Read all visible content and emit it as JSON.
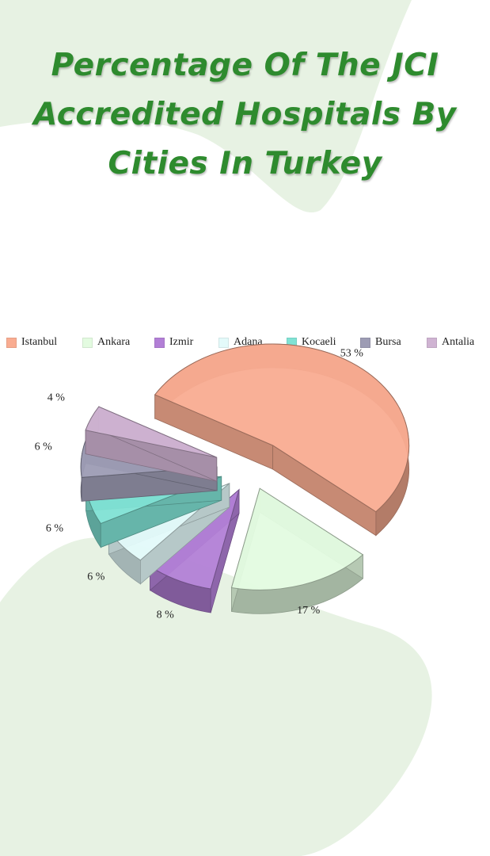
{
  "title": "Percentage Of The JCI Accredited Hospitals By Cities In Turkey",
  "colors": {
    "title": "#2e8b2e",
    "background_shape": "#e7f2e3"
  },
  "chart_data": {
    "type": "pie",
    "subtype": "3d-exploded",
    "legend_position": "top",
    "categories": [
      "Istanbul",
      "Ankara",
      "Izmir",
      "Adana",
      "Kocaeli",
      "Bursa",
      "Antalia"
    ],
    "values": [
      53,
      17,
      8,
      6,
      6,
      6,
      4
    ],
    "labels": [
      "53 %",
      "17 %",
      "8 %",
      "6 %",
      "6 %",
      "6 %",
      "4 %"
    ],
    "colors": [
      "#f9ac91",
      "#e3fbe0",
      "#b27fd6",
      "#e3fafa",
      "#80e2d4",
      "#9d9cb4",
      "#cfb3d2"
    ]
  }
}
